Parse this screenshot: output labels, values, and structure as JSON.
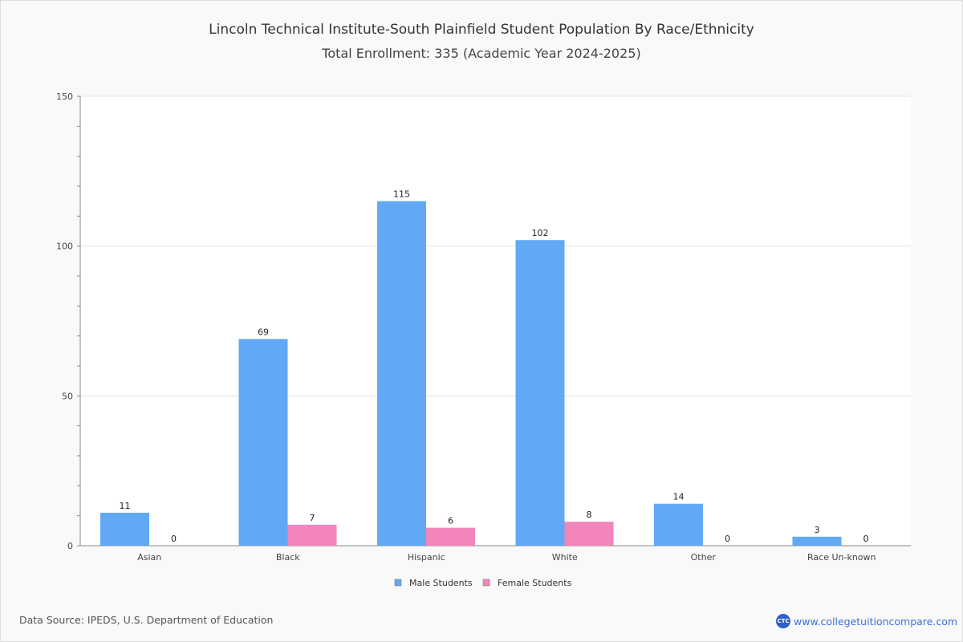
{
  "chart_data": {
    "type": "bar",
    "title": "Lincoln Technical Institute-South Plainfield Student Population By Race/Ethnicity",
    "subtitle": "Total Enrollment: 335 (Academic Year 2024-2025)",
    "categories": [
      "Asian",
      "Black",
      "Hispanic",
      "White",
      "Other",
      "Race Un-known"
    ],
    "series": [
      {
        "name": "Male Students",
        "color": "#62a9f5",
        "values": [
          11,
          69,
          115,
          102,
          14,
          3
        ]
      },
      {
        "name": "Female Students",
        "color": "#f285bc",
        "values": [
          0,
          7,
          6,
          8,
          0,
          0
        ]
      }
    ],
    "ylim": [
      0,
      150
    ],
    "yticks": [
      "0",
      "50",
      "100",
      "150"
    ],
    "grid": true,
    "legend": "bottom-center"
  },
  "footer": {
    "source": "Data Source: IPEDS, U.S. Department of Education",
    "brand": "www.collegetuitioncompare.com",
    "logo": "CTC"
  }
}
